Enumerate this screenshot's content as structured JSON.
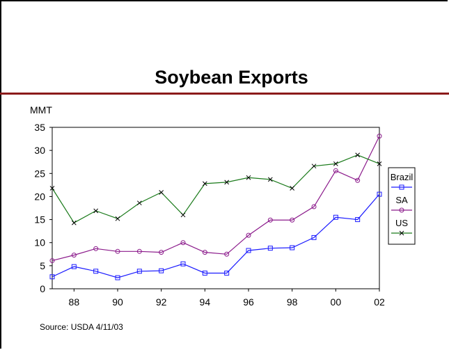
{
  "slide": {
    "title": "Soybean Exports",
    "unit": "MMT",
    "source": "Source: USDA 4/11/03",
    "accent_color": "#8b1a1a"
  },
  "chart_data": {
    "type": "line",
    "title": "Soybean Exports",
    "xlabel": "",
    "ylabel": "MMT",
    "x": [
      1987,
      1988,
      1989,
      1990,
      1991,
      1992,
      1993,
      1994,
      1995,
      1996,
      1997,
      1998,
      1999,
      2000,
      2001,
      2002
    ],
    "xlim": [
      1987,
      2002
    ],
    "ylim": [
      0,
      35
    ],
    "yticks": [
      "0",
      "5",
      "10",
      "15",
      "20",
      "25",
      "30",
      "35"
    ],
    "xticks": [
      {
        "x": 1988,
        "label": "88"
      },
      {
        "x": 1990,
        "label": "90"
      },
      {
        "x": 1992,
        "label": "92"
      },
      {
        "x": 1994,
        "label": "94"
      },
      {
        "x": 1996,
        "label": "96"
      },
      {
        "x": 1998,
        "label": "98"
      },
      {
        "x": 2000,
        "label": "00"
      },
      {
        "x": 2002,
        "label": "02"
      }
    ],
    "grid": false,
    "legend": "right",
    "series": [
      {
        "name": "Brazil",
        "color": "#1a1aff",
        "marker": "square",
        "values": [
          2.6,
          4.8,
          3.8,
          2.4,
          3.8,
          3.9,
          5.4,
          3.4,
          3.4,
          8.3,
          8.8,
          8.9,
          11.1,
          15.5,
          15.0,
          20.5
        ]
      },
      {
        "name": "SA",
        "color": "#8b1a8b",
        "marker": "circle",
        "values": [
          6.1,
          7.3,
          8.7,
          8.1,
          8.1,
          7.9,
          10.0,
          7.9,
          7.5,
          11.6,
          14.9,
          14.9,
          17.8,
          25.6,
          23.5,
          33.1
        ]
      },
      {
        "name": "US",
        "color": "#1a7a1a",
        "marker": "x",
        "values": [
          21.8,
          14.3,
          16.9,
          15.2,
          18.6,
          20.9,
          16.0,
          22.8,
          23.1,
          24.1,
          23.7,
          21.8,
          26.6,
          27.1,
          29.0,
          27.1
        ]
      }
    ]
  }
}
